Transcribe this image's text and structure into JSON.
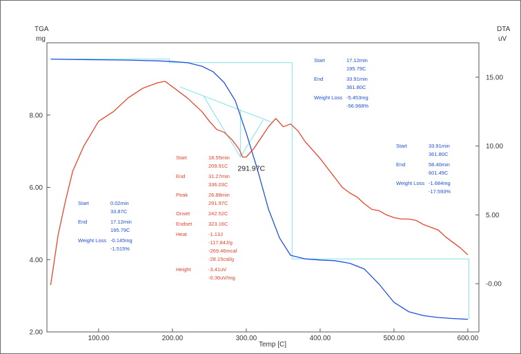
{
  "chart_data": {
    "type": "line",
    "axes": {
      "xlabel": "Temp  [C]",
      "left_label_top": "TGA",
      "left_label_unit": "mg",
      "right_label_top": "DTA",
      "right_label_unit": "uV",
      "xlim": [
        30,
        615
      ],
      "ylim_left": [
        2.0,
        10.0
      ],
      "ylim_right": [
        -3.5,
        17.5
      ],
      "xticks": [
        "100.00",
        "200.00",
        "300.00",
        "400.00",
        "500.00",
        "600.00"
      ],
      "xtick_values": [
        100,
        200,
        300,
        400,
        500,
        600
      ],
      "yticks_left": [
        "2.00",
        "4.00",
        "6.00",
        "8.00"
      ],
      "ytick_values_left": [
        2,
        4,
        6,
        8
      ],
      "yticks_right": [
        "-0.00",
        "5.00",
        "10.00",
        "15.00"
      ],
      "ytick_values_right": [
        0,
        5,
        10,
        15
      ],
      "grid": false
    },
    "series": [
      {
        "name": "",
        "axis": "left",
        "color": "#1f4fe0",
        "x": [
          35,
          60,
          100,
          140,
          180,
          200,
          220,
          240,
          255,
          270,
          285,
          300,
          315,
          330,
          345,
          360,
          380,
          400,
          420,
          440,
          460,
          480,
          500,
          520,
          540,
          560,
          580,
          600
        ],
        "y": [
          9.55,
          9.54,
          9.53,
          9.52,
          9.5,
          9.48,
          9.45,
          9.35,
          9.2,
          8.9,
          8.4,
          7.5,
          6.5,
          5.4,
          4.6,
          4.12,
          4.02,
          3.99,
          3.97,
          3.9,
          3.74,
          3.32,
          2.82,
          2.56,
          2.45,
          2.4,
          2.37,
          2.35
        ]
      },
      {
        "name": "",
        "axis": "right",
        "color": "#e8432a",
        "x": [
          35,
          45,
          55,
          65,
          80,
          100,
          120,
          140,
          160,
          180,
          190,
          200,
          210,
          220,
          230,
          240,
          250,
          260,
          270,
          280,
          290,
          295,
          300,
          310,
          320,
          330,
          340,
          350,
          360,
          370,
          380,
          390,
          400,
          410,
          420,
          430,
          440,
          450,
          460,
          470,
          480,
          490,
          500,
          510,
          520,
          530,
          540,
          550,
          560,
          570,
          580,
          590,
          600
        ],
        "y": [
          -0.1,
          3.5,
          6.0,
          8.2,
          10.0,
          11.8,
          12.5,
          13.5,
          14.2,
          14.6,
          14.7,
          14.3,
          13.9,
          13.5,
          13.0,
          12.5,
          11.8,
          11.2,
          11.0,
          10.5,
          9.8,
          9.2,
          9.2,
          9.8,
          10.6,
          11.4,
          12.0,
          11.4,
          11.6,
          11.1,
          10.3,
          9.7,
          9.1,
          8.4,
          7.7,
          7.0,
          6.6,
          6.3,
          5.8,
          5.4,
          5.3,
          5.0,
          4.8,
          4.7,
          4.7,
          4.6,
          4.3,
          4.1,
          3.9,
          3.4,
          3.0,
          2.6,
          2.1
        ]
      }
    ],
    "peak_label": "291.97C",
    "annotations": [
      {
        "color": "#1f4fe0",
        "rows": [
          {
            "label": "Start",
            "value": "0.02min",
            "value2": "33.87C"
          },
          {
            "label": "End",
            "value": "17.12min",
            "value2": "195.79C"
          },
          {
            "label": "Weight Loss",
            "value": "-0.145mg",
            "value2": "-1.515%"
          }
        ]
      },
      {
        "color": "#e8432a",
        "rows": [
          {
            "label": "Start",
            "value": "18.55min",
            "value2": "209.91C"
          },
          {
            "label": "End",
            "value": "31.27min",
            "value2": "336.03C"
          },
          {
            "label": "Peak",
            "value": "26.88min",
            "value2": "291.97C"
          },
          {
            "label": "Onset",
            "value": "242.52C",
            "value2": ""
          },
          {
            "label": "Endset",
            "value": "323.16C",
            "value2": ""
          },
          {
            "label": "Heat",
            "value": "-1.13J",
            "value2": "-117.84J/g",
            "value3": "-269.46mcal",
            "value4": "-28.15cal/g"
          },
          {
            "label": "Height",
            "value": "-3.41uV",
            "value2": "-0.36uV/mg"
          }
        ]
      },
      {
        "color": "#1f4fe0",
        "rows": [
          {
            "label": "Start",
            "value": "17.12min",
            "value2": "195.79C"
          },
          {
            "label": "End",
            "value": "33.91min",
            "value2": "361.80C"
          },
          {
            "label": "Weight Loss",
            "value": "-5.453mg",
            "value2": "-56.968%"
          }
        ]
      },
      {
        "color": "#1f4fe0",
        "rows": [
          {
            "label": "Start",
            "value": "33.91min",
            "value2": "361.80C"
          },
          {
            "label": "End",
            "value": "58.40min",
            "value2": "601.49C"
          },
          {
            "label": "Weight Loss",
            "value": "-1.684mg",
            "value2": "-17.593%"
          }
        ]
      }
    ]
  }
}
